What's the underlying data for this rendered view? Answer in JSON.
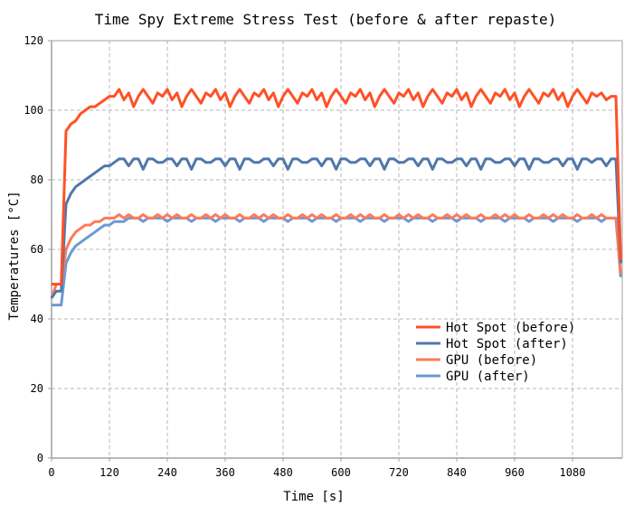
{
  "chart_data": {
    "type": "line",
    "title": "Time Spy Extreme Stress Test (before & after repaste)",
    "xlabel": "Time [s]",
    "ylabel": "Temperatures [°C]",
    "xlim": [
      0,
      1183
    ],
    "ylim": [
      0,
      120
    ],
    "xticks": [
      "0",
      "120",
      "240",
      "360",
      "480",
      "600",
      "720",
      "840",
      "960",
      "1080"
    ],
    "yticks": [
      "0",
      "20",
      "40",
      "60",
      "80",
      "100",
      "120"
    ],
    "grid": true,
    "legend_position": "center-right",
    "x": [
      0,
      10,
      20,
      30,
      40,
      50,
      60,
      70,
      80,
      90,
      100,
      110,
      120,
      130,
      140,
      150,
      160,
      170,
      180,
      190,
      200,
      210,
      220,
      230,
      240,
      250,
      260,
      270,
      280,
      290,
      300,
      310,
      320,
      330,
      340,
      350,
      360,
      370,
      380,
      390,
      400,
      410,
      420,
      430,
      440,
      450,
      460,
      470,
      480,
      490,
      500,
      510,
      520,
      530,
      540,
      550,
      560,
      570,
      580,
      590,
      600,
      610,
      620,
      630,
      640,
      650,
      660,
      670,
      680,
      690,
      700,
      710,
      720,
      730,
      740,
      750,
      760,
      770,
      780,
      790,
      800,
      810,
      820,
      830,
      840,
      850,
      860,
      870,
      880,
      890,
      900,
      910,
      920,
      930,
      940,
      950,
      960,
      970,
      980,
      990,
      1000,
      1010,
      1020,
      1030,
      1040,
      1050,
      1060,
      1070,
      1080,
      1090,
      1100,
      1110,
      1120,
      1130,
      1140,
      1150,
      1160,
      1170,
      1180
    ],
    "series": [
      {
        "name": "Hot Spot (before)",
        "color": "#ff5126",
        "values": [
          50,
          50,
          50,
          94,
          96,
          97,
          99,
          100,
          101,
          101,
          102,
          103,
          104,
          104,
          106,
          103,
          105,
          101,
          104,
          106,
          104,
          102,
          105,
          104,
          106,
          103,
          105,
          101,
          104,
          106,
          104,
          102,
          105,
          104,
          106,
          103,
          105,
          101,
          104,
          106,
          104,
          102,
          105,
          104,
          106,
          103,
          105,
          101,
          104,
          106,
          104,
          102,
          105,
          104,
          106,
          103,
          105,
          101,
          104,
          106,
          104,
          102,
          105,
          104,
          106,
          103,
          105,
          101,
          104,
          106,
          104,
          102,
          105,
          104,
          106,
          103,
          105,
          101,
          104,
          106,
          104,
          102,
          105,
          104,
          106,
          103,
          105,
          101,
          104,
          106,
          104,
          102,
          105,
          104,
          106,
          103,
          105,
          101,
          104,
          106,
          104,
          102,
          105,
          104,
          106,
          103,
          105,
          101,
          104,
          106,
          104,
          102,
          105,
          104,
          105,
          103,
          104,
          104,
          57
        ]
      },
      {
        "name": "Hot Spot (after)",
        "color": "#4f78ab",
        "values": [
          46,
          48,
          48,
          73,
          76,
          78,
          79,
          80,
          81,
          82,
          83,
          84,
          84,
          85,
          86,
          86,
          84,
          86,
          86,
          83,
          86,
          86,
          85,
          85,
          86,
          86,
          84,
          86,
          86,
          83,
          86,
          86,
          85,
          85,
          86,
          86,
          84,
          86,
          86,
          83,
          86,
          86,
          85,
          85,
          86,
          86,
          84,
          86,
          86,
          83,
          86,
          86,
          85,
          85,
          86,
          86,
          84,
          86,
          86,
          83,
          86,
          86,
          85,
          85,
          86,
          86,
          84,
          86,
          86,
          83,
          86,
          86,
          85,
          85,
          86,
          86,
          84,
          86,
          86,
          83,
          86,
          86,
          85,
          85,
          86,
          86,
          84,
          86,
          86,
          83,
          86,
          86,
          85,
          85,
          86,
          86,
          84,
          86,
          86,
          83,
          86,
          86,
          85,
          85,
          86,
          86,
          84,
          86,
          86,
          83,
          86,
          86,
          85,
          86,
          86,
          84,
          86,
          86,
          56
        ]
      },
      {
        "name": "GPU (before)",
        "color": "#ff7a5a",
        "values": [
          46,
          50,
          50,
          60,
          63,
          65,
          66,
          67,
          67,
          68,
          68,
          69,
          69,
          69,
          70,
          69,
          70,
          69,
          69,
          70,
          69,
          69,
          70,
          69,
          70,
          69,
          70,
          69,
          69,
          70,
          69,
          69,
          70,
          69,
          70,
          69,
          70,
          69,
          69,
          70,
          69,
          69,
          70,
          69,
          70,
          69,
          70,
          69,
          69,
          70,
          69,
          69,
          70,
          69,
          70,
          69,
          70,
          69,
          69,
          70,
          69,
          69,
          70,
          69,
          70,
          69,
          70,
          69,
          69,
          70,
          69,
          69,
          70,
          69,
          70,
          69,
          70,
          69,
          69,
          70,
          69,
          69,
          70,
          69,
          70,
          69,
          70,
          69,
          69,
          70,
          69,
          69,
          70,
          69,
          70,
          69,
          70,
          69,
          69,
          70,
          69,
          69,
          70,
          69,
          70,
          69,
          70,
          69,
          69,
          70,
          69,
          69,
          70,
          69,
          70,
          69,
          69,
          69,
          53
        ]
      },
      {
        "name": "GPU (after)",
        "color": "#6b9ad3",
        "values": [
          44,
          44,
          44,
          56,
          59,
          61,
          62,
          63,
          64,
          65,
          66,
          67,
          67,
          68,
          68,
          68,
          69,
          69,
          69,
          68,
          69,
          69,
          69,
          69,
          68,
          69,
          69,
          69,
          69,
          68,
          69,
          69,
          69,
          69,
          68,
          69,
          69,
          69,
          69,
          68,
          69,
          69,
          69,
          69,
          68,
          69,
          69,
          69,
          69,
          68,
          69,
          69,
          69,
          69,
          68,
          69,
          69,
          69,
          69,
          68,
          69,
          69,
          69,
          69,
          68,
          69,
          69,
          69,
          69,
          68,
          69,
          69,
          69,
          69,
          68,
          69,
          69,
          69,
          69,
          68,
          69,
          69,
          69,
          69,
          68,
          69,
          69,
          69,
          69,
          68,
          69,
          69,
          69,
          69,
          68,
          69,
          69,
          69,
          69,
          68,
          69,
          69,
          69,
          69,
          68,
          69,
          69,
          69,
          69,
          68,
          69,
          69,
          69,
          69,
          68,
          69,
          69,
          69,
          52
        ]
      }
    ]
  }
}
